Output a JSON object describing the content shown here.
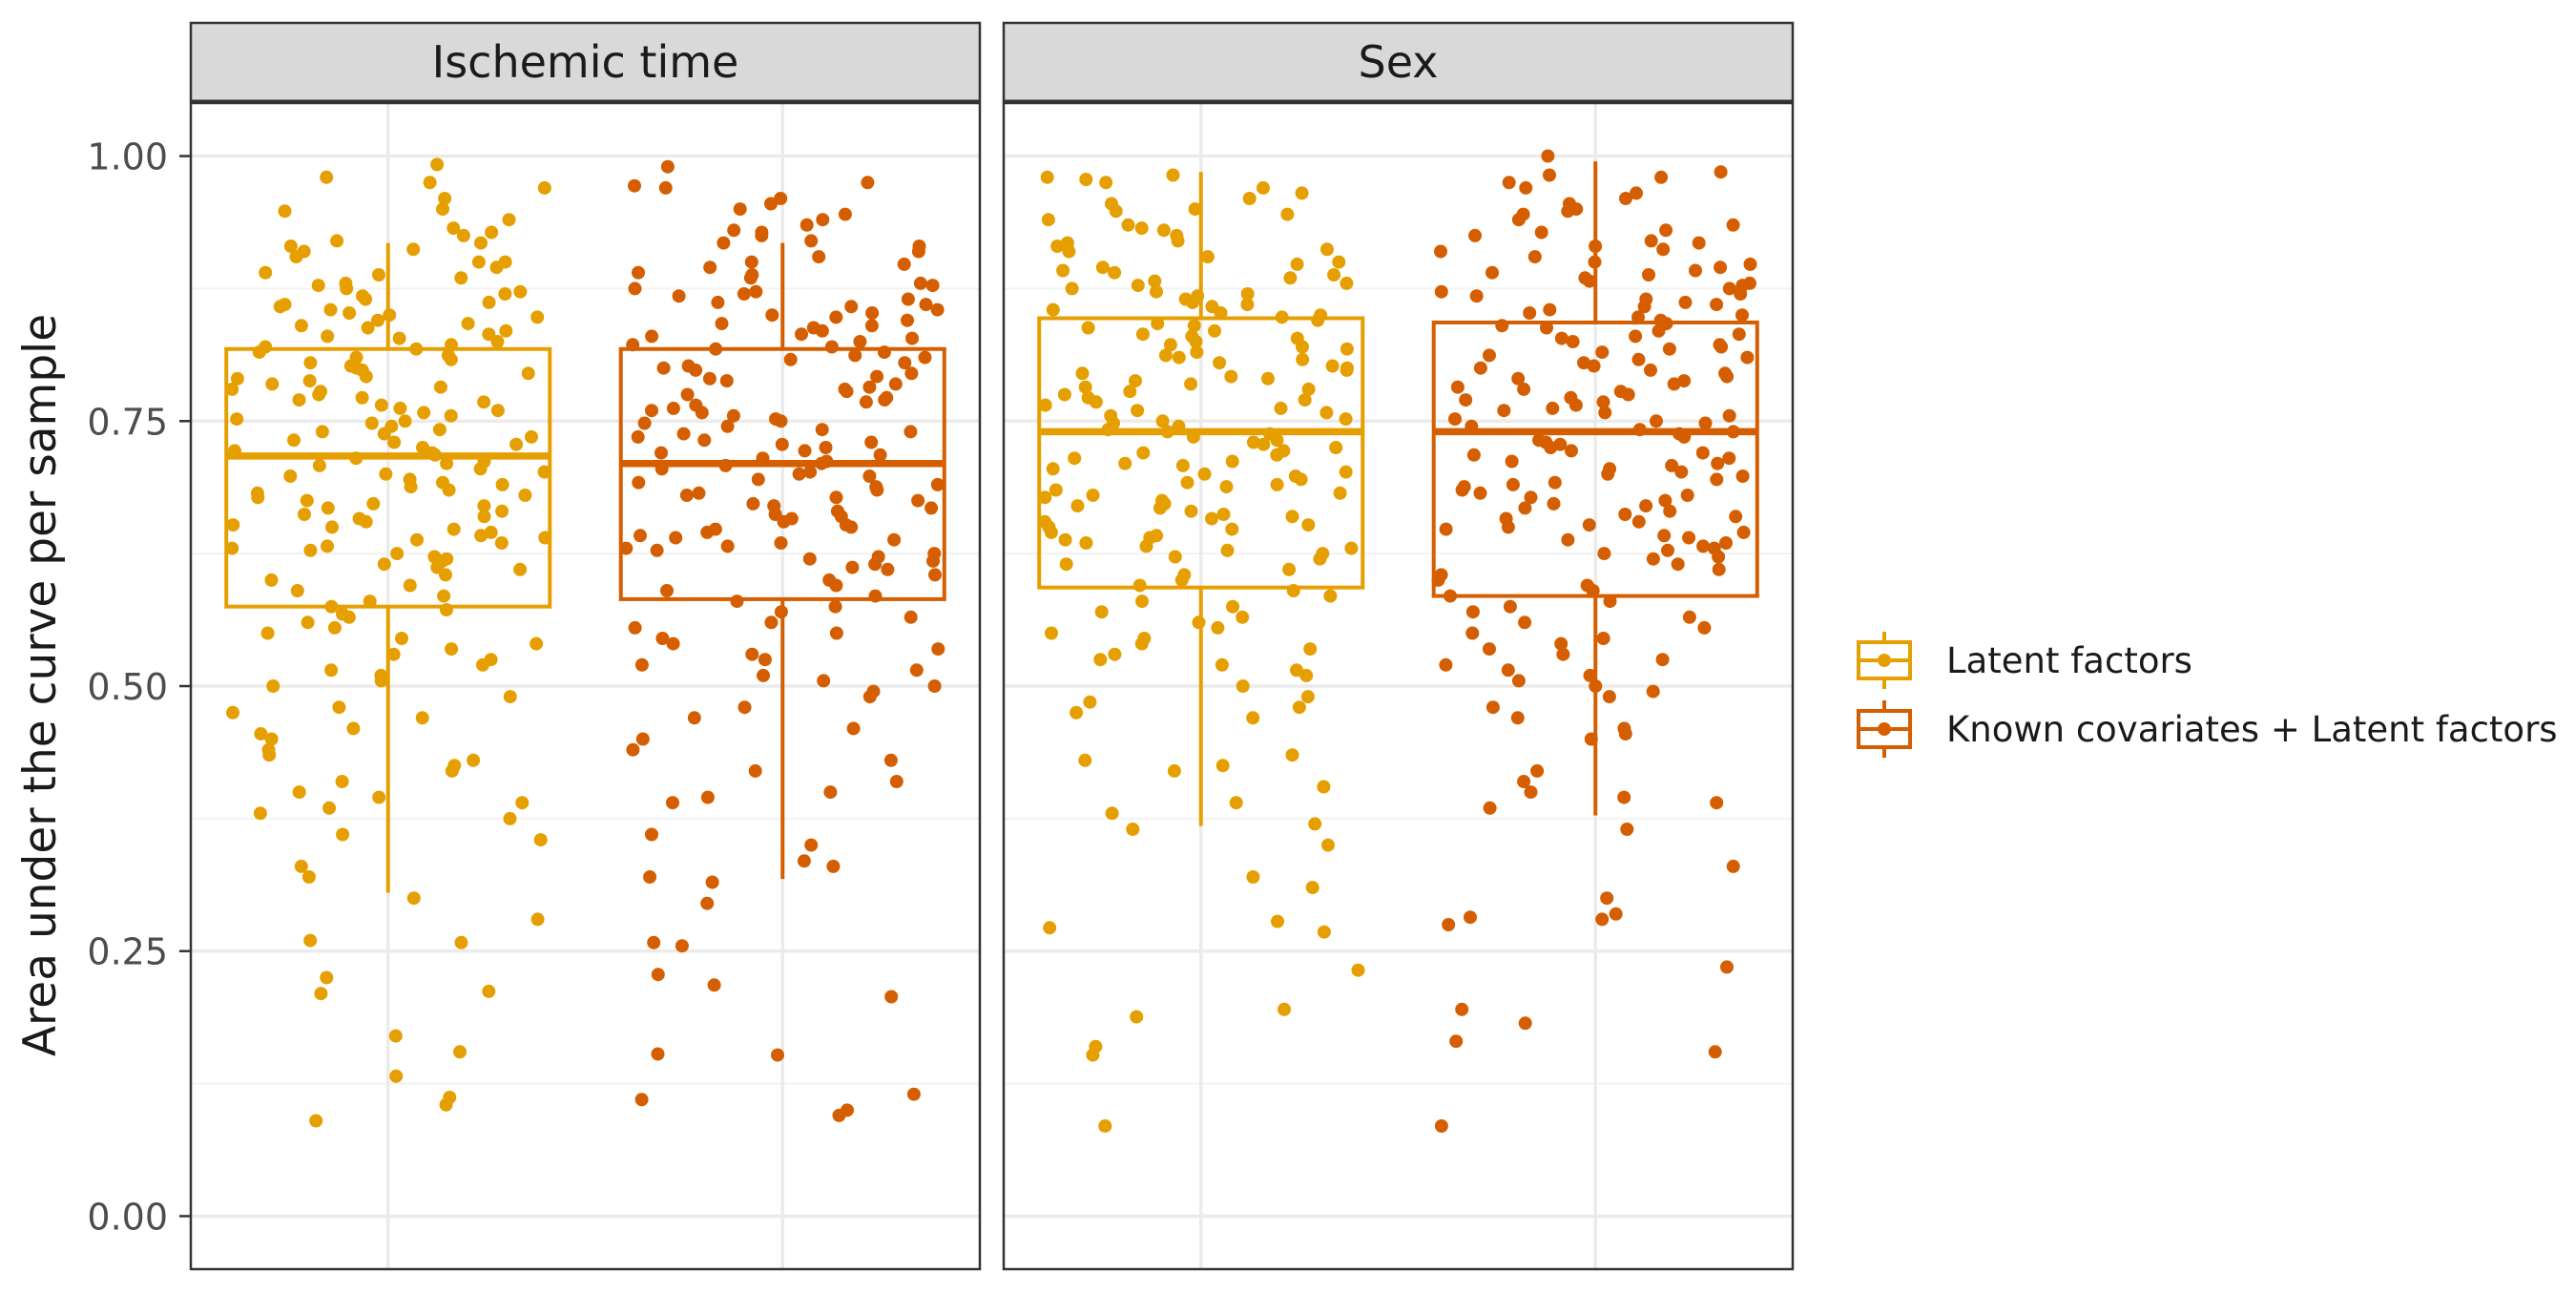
{
  "chart_data": {
    "type": "boxplot",
    "ylabel": "Area under the curve per sample",
    "ylim": [
      -0.05,
      1.05
    ],
    "y_ticks": [
      "0.00",
      "0.25",
      "0.50",
      "0.75",
      "1.00"
    ],
    "y_tick_values": [
      0,
      0.25,
      0.5,
      0.75,
      1.0
    ],
    "grid": true,
    "legend_placement": "right",
    "colors": {
      "latent": "#E69F00",
      "known_latent": "#D55E00",
      "strip_bg": "#D9D9D9",
      "grid": "#EBEBEB",
      "panel_border": "#333333"
    },
    "legend": [
      {
        "name": "Latent factors",
        "color": "#E69F00"
      },
      {
        "name": "Known covariates + Latent factors",
        "color": "#D55E00"
      }
    ],
    "panels": [
      {
        "title": "Ischemic time",
        "boxes": [
          {
            "series": "Latent factors",
            "whisker_low": 0.305,
            "q1": 0.575,
            "median": 0.717,
            "q3": 0.818,
            "whisker_high": 0.918,
            "points": [
              0.992,
              0.98,
              0.975,
              0.97,
              0.96,
              0.95,
              0.948,
              0.94,
              0.932,
              0.928,
              0.925,
              0.92,
              0.918,
              0.915,
              0.912,
              0.91,
              0.905,
              0.9,
              0.9,
              0.895,
              0.89,
              0.888,
              0.885,
              0.88,
              0.878,
              0.875,
              0.872,
              0.87,
              0.868,
              0.865,
              0.862,
              0.86,
              0.858,
              0.855,
              0.852,
              0.85,
              0.848,
              0.845,
              0.842,
              0.84,
              0.838,
              0.835,
              0.832,
              0.83,
              0.828,
              0.825,
              0.822,
              0.82,
              0.818,
              0.815,
              0.812,
              0.81,
              0.808,
              0.805,
              0.802,
              0.8,
              0.798,
              0.795,
              0.792,
              0.79,
              0.788,
              0.785,
              0.782,
              0.78,
              0.778,
              0.775,
              0.772,
              0.77,
              0.768,
              0.765,
              0.762,
              0.76,
              0.758,
              0.755,
              0.752,
              0.75,
              0.748,
              0.745,
              0.742,
              0.74,
              0.738,
              0.735,
              0.732,
              0.73,
              0.728,
              0.725,
              0.722,
              0.72,
              0.718,
              0.715,
              0.712,
              0.71,
              0.708,
              0.705,
              0.702,
              0.7,
              0.698,
              0.695,
              0.692,
              0.69,
              0.688,
              0.685,
              0.682,
              0.68,
              0.678,
              0.675,
              0.672,
              0.67,
              0.668,
              0.665,
              0.662,
              0.66,
              0.658,
              0.655,
              0.652,
              0.65,
              0.648,
              0.645,
              0.642,
              0.64,
              0.638,
              0.635,
              0.632,
              0.63,
              0.628,
              0.625,
              0.622,
              0.62,
              0.618,
              0.615,
              0.612,
              0.61,
              0.605,
              0.6,
              0.595,
              0.59,
              0.585,
              0.58,
              0.575,
              0.572,
              0.568,
              0.565,
              0.56,
              0.555,
              0.55,
              0.545,
              0.54,
              0.535,
              0.53,
              0.525,
              0.52,
              0.515,
              0.51,
              0.505,
              0.5,
              0.49,
              0.48,
              0.475,
              0.47,
              0.46,
              0.455,
              0.45,
              0.44,
              0.435,
              0.43,
              0.425,
              0.42,
              0.41,
              0.4,
              0.395,
              0.39,
              0.385,
              0.38,
              0.375,
              0.36,
              0.355,
              0.33,
              0.32,
              0.3,
              0.28,
              0.26,
              0.258,
              0.225,
              0.212,
              0.21,
              0.17,
              0.155,
              0.132,
              0.112,
              0.105,
              0.09
            ]
          },
          {
            "series": "Known covariates + Latent factors",
            "whisker_low": 0.318,
            "q1": 0.582,
            "median": 0.71,
            "q3": 0.818,
            "whisker_high": 0.918,
            "points": [
              0.99,
              0.975,
              0.972,
              0.97,
              0.96,
              0.955,
              0.95,
              0.945,
              0.94,
              0.935,
              0.93,
              0.928,
              0.925,
              0.92,
              0.918,
              0.915,
              0.91,
              0.905,
              0.9,
              0.898,
              0.895,
              0.89,
              0.888,
              0.885,
              0.88,
              0.878,
              0.875,
              0.872,
              0.87,
              0.868,
              0.865,
              0.862,
              0.86,
              0.858,
              0.855,
              0.852,
              0.85,
              0.848,
              0.845,
              0.842,
              0.84,
              0.838,
              0.835,
              0.832,
              0.83,
              0.828,
              0.825,
              0.822,
              0.82,
              0.818,
              0.815,
              0.812,
              0.81,
              0.808,
              0.805,
              0.802,
              0.8,
              0.798,
              0.795,
              0.792,
              0.79,
              0.788,
              0.785,
              0.782,
              0.78,
              0.778,
              0.775,
              0.772,
              0.77,
              0.768,
              0.765,
              0.762,
              0.76,
              0.758,
              0.755,
              0.752,
              0.75,
              0.748,
              0.745,
              0.742,
              0.74,
              0.738,
              0.735,
              0.732,
              0.73,
              0.728,
              0.725,
              0.722,
              0.72,
              0.718,
              0.715,
              0.712,
              0.71,
              0.708,
              0.705,
              0.702,
              0.7,
              0.698,
              0.695,
              0.692,
              0.69,
              0.688,
              0.685,
              0.682,
              0.68,
              0.678,
              0.675,
              0.672,
              0.67,
              0.668,
              0.665,
              0.662,
              0.66,
              0.658,
              0.655,
              0.652,
              0.65,
              0.648,
              0.645,
              0.642,
              0.64,
              0.638,
              0.635,
              0.632,
              0.63,
              0.628,
              0.625,
              0.622,
              0.62,
              0.618,
              0.615,
              0.612,
              0.61,
              0.605,
              0.6,
              0.595,
              0.59,
              0.585,
              0.58,
              0.575,
              0.57,
              0.565,
              0.56,
              0.555,
              0.55,
              0.545,
              0.54,
              0.535,
              0.53,
              0.525,
              0.52,
              0.515,
              0.51,
              0.505,
              0.5,
              0.495,
              0.49,
              0.48,
              0.47,
              0.46,
              0.45,
              0.44,
              0.43,
              0.42,
              0.41,
              0.4,
              0.395,
              0.39,
              0.36,
              0.35,
              0.335,
              0.33,
              0.32,
              0.315,
              0.295,
              0.258,
              0.255,
              0.228,
              0.218,
              0.207,
              0.153,
              0.152,
              0.115,
              0.11,
              0.1,
              0.095
            ]
          }
        ]
      },
      {
        "title": "Sex",
        "boxes": [
          {
            "series": "Latent factors",
            "whisker_low": 0.368,
            "q1": 0.593,
            "median": 0.74,
            "q3": 0.847,
            "whisker_high": 0.985,
            "points": [
              0.982,
              0.98,
              0.978,
              0.975,
              0.97,
              0.965,
              0.96,
              0.955,
              0.95,
              0.948,
              0.945,
              0.94,
              0.935,
              0.932,
              0.93,
              0.925,
              0.92,
              0.918,
              0.915,
              0.912,
              0.91,
              0.905,
              0.9,
              0.898,
              0.895,
              0.892,
              0.89,
              0.888,
              0.885,
              0.882,
              0.88,
              0.878,
              0.875,
              0.872,
              0.87,
              0.868,
              0.865,
              0.862,
              0.86,
              0.858,
              0.855,
              0.852,
              0.85,
              0.848,
              0.845,
              0.842,
              0.84,
              0.838,
              0.835,
              0.832,
              0.83,
              0.828,
              0.825,
              0.822,
              0.82,
              0.818,
              0.815,
              0.812,
              0.81,
              0.808,
              0.805,
              0.802,
              0.8,
              0.798,
              0.795,
              0.792,
              0.79,
              0.788,
              0.785,
              0.782,
              0.78,
              0.778,
              0.775,
              0.772,
              0.77,
              0.768,
              0.765,
              0.762,
              0.76,
              0.758,
              0.755,
              0.752,
              0.75,
              0.748,
              0.745,
              0.742,
              0.74,
              0.738,
              0.735,
              0.732,
              0.73,
              0.728,
              0.725,
              0.722,
              0.72,
              0.718,
              0.715,
              0.712,
              0.71,
              0.708,
              0.705,
              0.702,
              0.7,
              0.698,
              0.695,
              0.692,
              0.69,
              0.688,
              0.685,
              0.682,
              0.68,
              0.678,
              0.675,
              0.672,
              0.67,
              0.668,
              0.665,
              0.662,
              0.66,
              0.658,
              0.655,
              0.652,
              0.65,
              0.648,
              0.645,
              0.642,
              0.64,
              0.638,
              0.635,
              0.632,
              0.63,
              0.628,
              0.625,
              0.622,
              0.62,
              0.615,
              0.61,
              0.605,
              0.6,
              0.595,
              0.59,
              0.585,
              0.58,
              0.575,
              0.57,
              0.565,
              0.56,
              0.555,
              0.55,
              0.545,
              0.54,
              0.535,
              0.53,
              0.525,
              0.52,
              0.515,
              0.51,
              0.5,
              0.49,
              0.485,
              0.48,
              0.475,
              0.47,
              0.435,
              0.43,
              0.425,
              0.42,
              0.405,
              0.39,
              0.38,
              0.37,
              0.365,
              0.35,
              0.32,
              0.31,
              0.278,
              0.272,
              0.268,
              0.232,
              0.195,
              0.188,
              0.16,
              0.152,
              0.085
            ]
          },
          {
            "series": "Known covariates + Latent factors",
            "whisker_low": 0.378,
            "q1": 0.585,
            "median": 0.74,
            "q3": 0.843,
            "whisker_high": 0.995,
            "points": [
              1.0,
              0.985,
              0.982,
              0.98,
              0.975,
              0.97,
              0.965,
              0.96,
              0.955,
              0.95,
              0.948,
              0.945,
              0.94,
              0.935,
              0.93,
              0.928,
              0.925,
              0.92,
              0.918,
              0.915,
              0.912,
              0.91,
              0.905,
              0.9,
              0.898,
              0.895,
              0.892,
              0.89,
              0.888,
              0.885,
              0.882,
              0.88,
              0.878,
              0.875,
              0.872,
              0.87,
              0.868,
              0.865,
              0.862,
              0.86,
              0.858,
              0.855,
              0.852,
              0.85,
              0.848,
              0.845,
              0.842,
              0.84,
              0.838,
              0.835,
              0.832,
              0.83,
              0.828,
              0.825,
              0.822,
              0.82,
              0.818,
              0.815,
              0.812,
              0.81,
              0.808,
              0.805,
              0.802,
              0.8,
              0.798,
              0.795,
              0.792,
              0.79,
              0.788,
              0.785,
              0.782,
              0.78,
              0.778,
              0.775,
              0.772,
              0.77,
              0.768,
              0.765,
              0.762,
              0.76,
              0.758,
              0.755,
              0.752,
              0.75,
              0.748,
              0.745,
              0.742,
              0.74,
              0.738,
              0.735,
              0.732,
              0.73,
              0.728,
              0.725,
              0.722,
              0.72,
              0.718,
              0.715,
              0.712,
              0.71,
              0.708,
              0.705,
              0.702,
              0.7,
              0.698,
              0.695,
              0.692,
              0.69,
              0.688,
              0.685,
              0.682,
              0.68,
              0.678,
              0.675,
              0.672,
              0.67,
              0.668,
              0.665,
              0.662,
              0.66,
              0.658,
              0.655,
              0.652,
              0.65,
              0.648,
              0.645,
              0.642,
              0.64,
              0.638,
              0.635,
              0.632,
              0.63,
              0.628,
              0.625,
              0.622,
              0.62,
              0.615,
              0.61,
              0.605,
              0.6,
              0.595,
              0.59,
              0.585,
              0.58,
              0.575,
              0.57,
              0.565,
              0.56,
              0.555,
              0.55,
              0.545,
              0.54,
              0.535,
              0.53,
              0.525,
              0.52,
              0.515,
              0.51,
              0.505,
              0.5,
              0.495,
              0.49,
              0.48,
              0.47,
              0.46,
              0.455,
              0.45,
              0.42,
              0.41,
              0.4,
              0.395,
              0.39,
              0.385,
              0.365,
              0.33,
              0.3,
              0.285,
              0.282,
              0.28,
              0.275,
              0.235,
              0.195,
              0.182,
              0.165,
              0.155,
              0.085
            ]
          }
        ]
      }
    ]
  }
}
